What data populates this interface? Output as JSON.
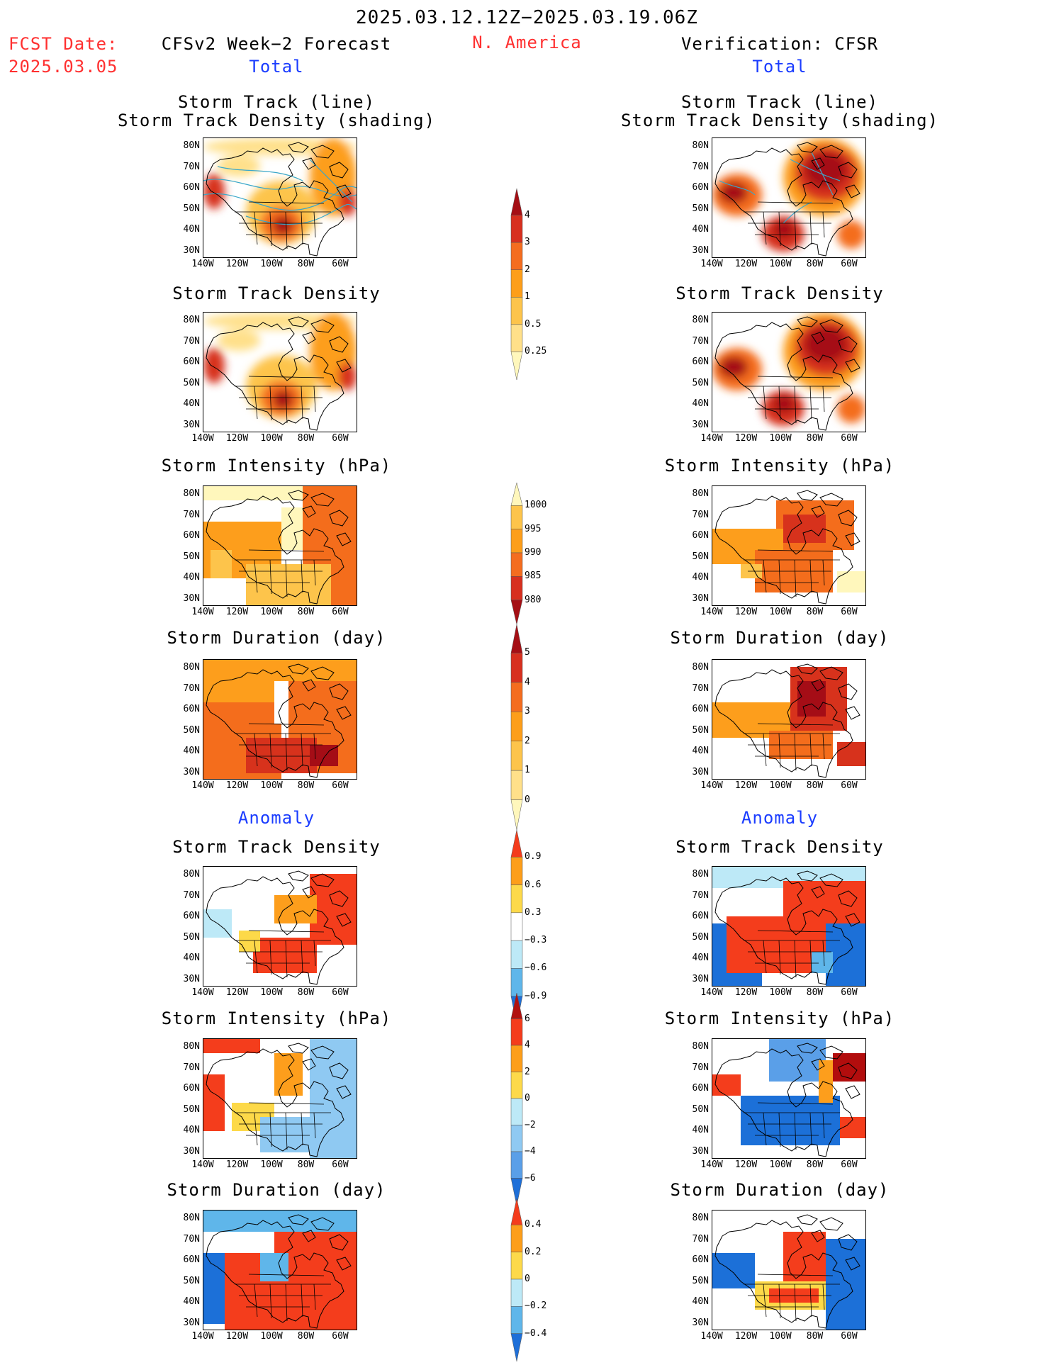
{
  "header": {
    "period": "2025.03.12.12Z−2025.03.19.06Z",
    "region": "N. America",
    "fcst_label": "FCST Date:",
    "fcst_date": "2025.03.05",
    "left_title": "CFSv2 Week−2 Forecast",
    "right_title": "Verification: CFSR",
    "total_label": "Total",
    "anomaly_label": "Anomaly"
  },
  "axes": {
    "lat_ticks": [
      "80N",
      "70N",
      "60N",
      "50N",
      "40N",
      "30N"
    ],
    "lon_ticks": [
      "140W",
      "120W",
      "100W",
      "80W",
      "60W"
    ]
  },
  "panels": {
    "track_line_1": "Storm Track (line)",
    "track_line_2": "Storm Track Density (shading)",
    "track_density": "Storm Track Density",
    "intensity": "Storm Intensity (hPa)",
    "duration": "Storm Duration (day)"
  },
  "colorbars": {
    "density": {
      "labels": [
        "4",
        "3",
        "2",
        "1",
        "0.5",
        "0.25"
      ],
      "colors": [
        "#a50f15",
        "#d7301f",
        "#f46d1f",
        "#fd9e1a",
        "#fdc44b",
        "#ffe08a",
        "#fff7bc"
      ]
    },
    "intensity": {
      "labels": [
        "1000",
        "995",
        "990",
        "985",
        "980"
      ],
      "colors": [
        "#fff7bc",
        "#fdc44b",
        "#fd9e1a",
        "#f46d1f",
        "#d7301f",
        "#a50f15"
      ]
    },
    "duration": {
      "labels": [
        "5",
        "4",
        "3",
        "2",
        "1",
        "0"
      ],
      "colors": [
        "#a50f15",
        "#d7301f",
        "#f46d1f",
        "#fd9e1a",
        "#fdc44b",
        "#ffe08a",
        "#fff7bc"
      ]
    },
    "anom_density": {
      "labels": [
        "0.9",
        "0.6",
        "0.3",
        "−0.3",
        "−0.6",
        "−0.9"
      ],
      "colors": [
        "#f43c1c",
        "#fd9e1a",
        "#fdd94a",
        "#ffffff",
        "#bde9f7",
        "#5fb6ea",
        "#1e6fd8"
      ]
    },
    "anom_intensity": {
      "labels": [
        "6",
        "4",
        "2",
        "0",
        "−2",
        "−4",
        "−6"
      ],
      "colors": [
        "#b2110f",
        "#f43c1c",
        "#fd9e1a",
        "#fdd94a",
        "#bde9f7",
        "#8fc9f2",
        "#5a9fe8",
        "#1e6fd8"
      ]
    },
    "anom_duration": {
      "labels": [
        "0.4",
        "0.2",
        "0",
        "−0.2",
        "−0.4"
      ],
      "colors": [
        "#f43c1c",
        "#fd9e1a",
        "#fdd94a",
        "#bde9f7",
        "#5fb6ea",
        "#1e6fd8"
      ]
    }
  }
}
